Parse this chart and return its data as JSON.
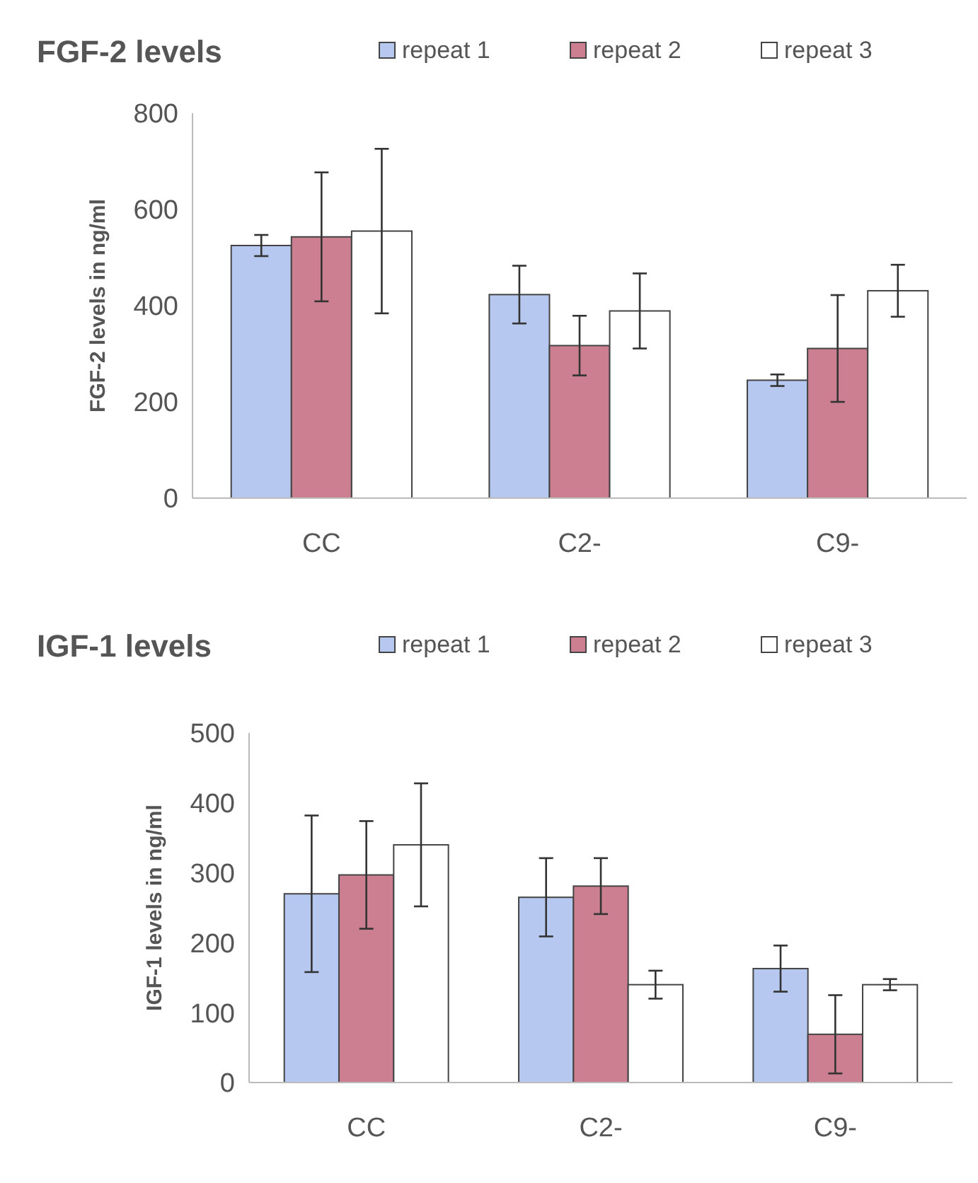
{
  "chart_data": [
    {
      "type": "bar",
      "title": "FGF-2 levels",
      "ylabel": "FGF-2 levels in ng/ml",
      "categories": [
        "CC",
        "C2-",
        "C9-"
      ],
      "ylim": [
        0,
        800
      ],
      "yticks": [
        0,
        200,
        400,
        600,
        800
      ],
      "grid": false,
      "legend": "top right",
      "series": [
        {
          "name": "repeat 1",
          "color": "#b7c8f0",
          "values": [
            525,
            423,
            245
          ],
          "errors": [
            22,
            60,
            12
          ]
        },
        {
          "name": "repeat 2",
          "color": "#cc7f90",
          "values": [
            543,
            317,
            311
          ],
          "errors": [
            134,
            62,
            111
          ]
        },
        {
          "name": "repeat 3",
          "color": "#ffffff",
          "values": [
            555,
            389,
            431
          ],
          "errors": [
            171,
            78,
            54
          ]
        }
      ]
    },
    {
      "type": "bar",
      "title": "IGF-1 levels",
      "ylabel": "IGF-1 levels in ng/ml",
      "categories": [
        "CC",
        "C2-",
        "C9-"
      ],
      "ylim": [
        0,
        500
      ],
      "yticks": [
        0,
        100,
        200,
        300,
        400,
        500
      ],
      "grid": false,
      "legend": "top right",
      "series": [
        {
          "name": "repeat 1",
          "color": "#b7c8f0",
          "values": [
            270,
            265,
            163
          ],
          "errors": [
            112,
            56,
            33
          ]
        },
        {
          "name": "repeat 2",
          "color": "#cc7f90",
          "values": [
            297,
            281,
            69
          ],
          "errors": [
            77,
            40,
            56
          ]
        },
        {
          "name": "repeat 3",
          "color": "#ffffff",
          "values": [
            340,
            140,
            140
          ],
          "errors": [
            88,
            20,
            8
          ]
        }
      ]
    }
  ]
}
